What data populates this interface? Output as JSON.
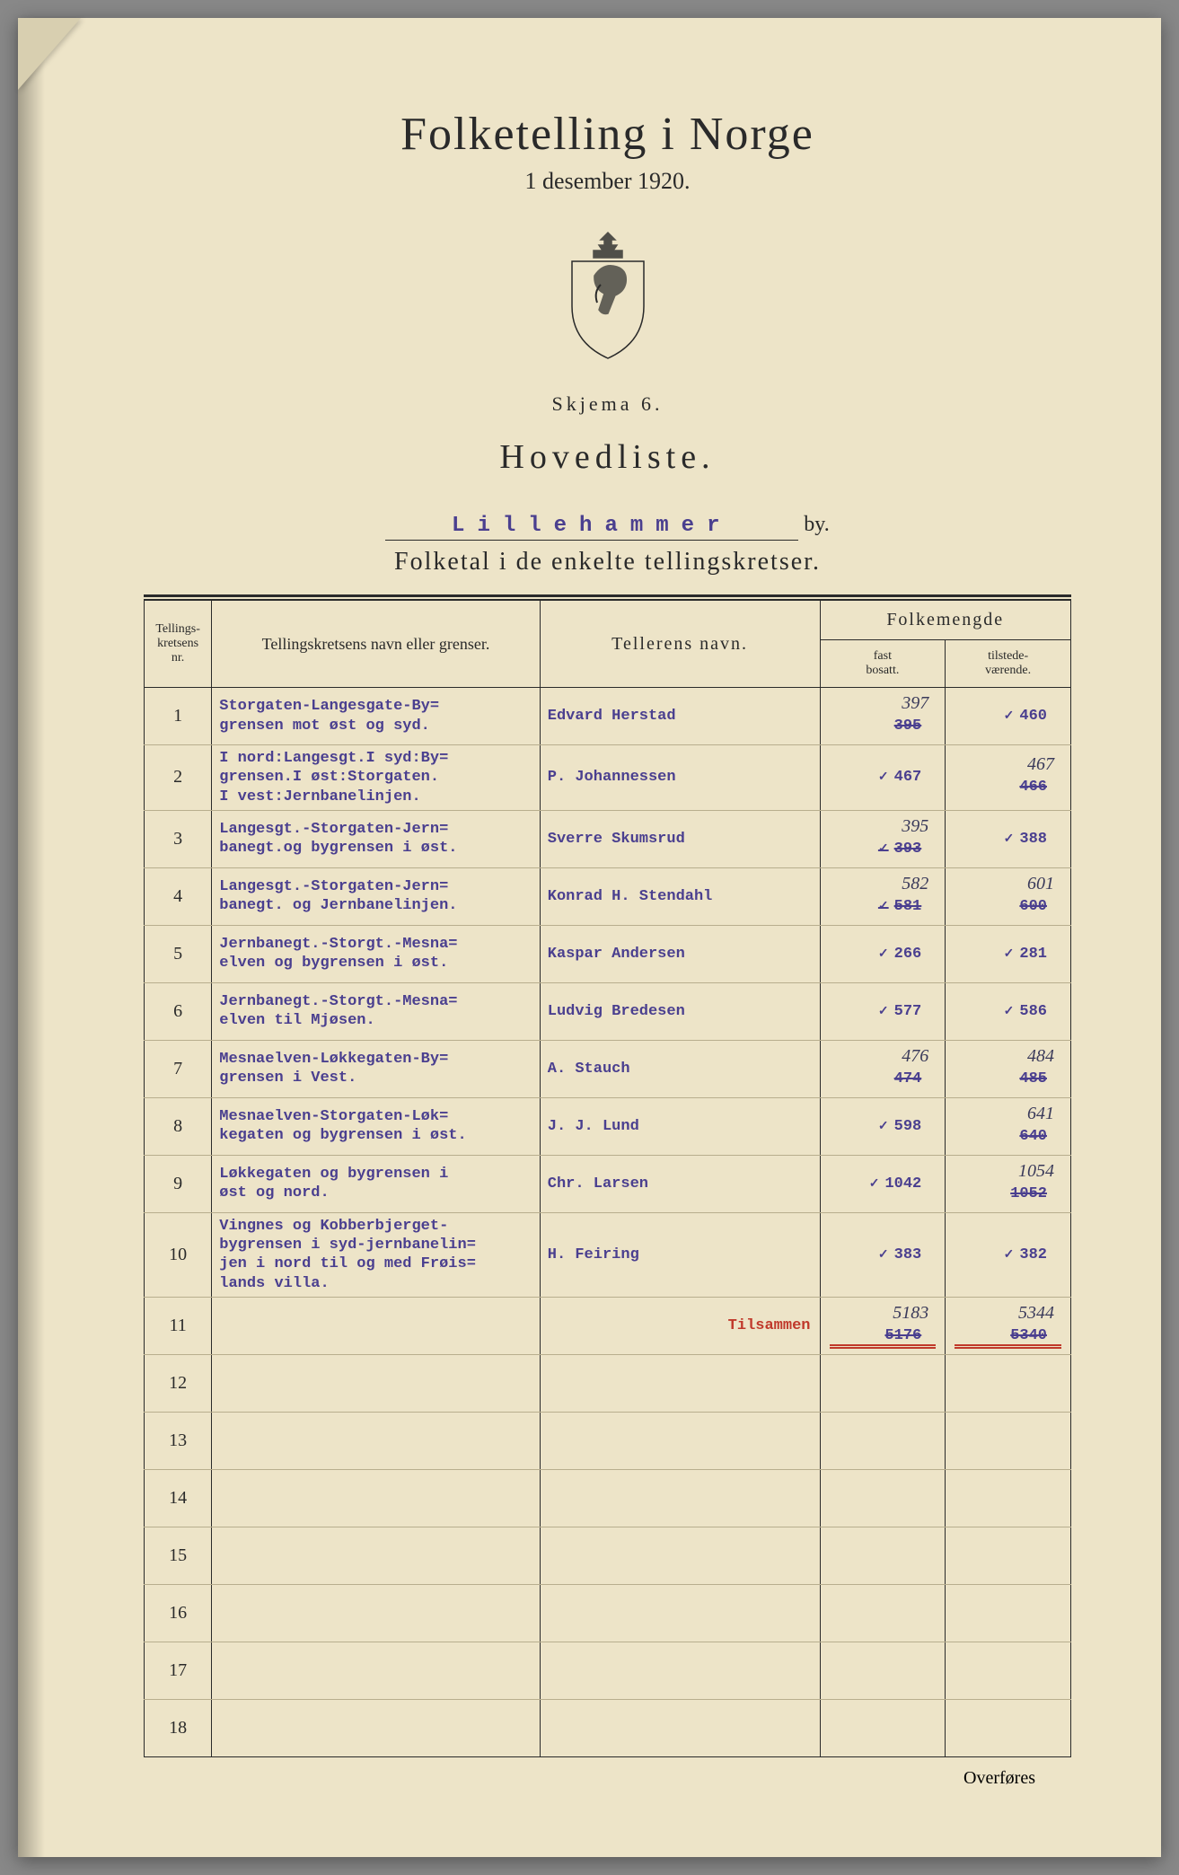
{
  "colors": {
    "paper": "#ede4c8",
    "ink": "#2a2a2a",
    "typed": "#4a3f8f",
    "red": "#c0392b",
    "rowline": "#b8ae8e",
    "handwritten": "#3a3a5a"
  },
  "header": {
    "title": "Folketelling i Norge",
    "date": "1 desember 1920.",
    "skjema": "Skjema 6.",
    "hovedliste": "Hovedliste.",
    "city": "Lillehammer",
    "city_suffix": "by.",
    "subtitle": "Folketal i de enkelte tellingskretser."
  },
  "table": {
    "headers": {
      "nr_line1": "Tellings-",
      "nr_line2": "kretsens",
      "nr_line3": "nr.",
      "name": "Tellingskretsens navn eller grenser.",
      "teller": "Tellerens navn.",
      "folkemengde": "Folkemengde",
      "fast_line1": "fast",
      "fast_line2": "bosatt.",
      "til_line1": "tilstede-",
      "til_line2": "værende."
    },
    "rows": [
      {
        "nr": "1",
        "name": "Storgaten-Langesgate-By=\ngrensen mot øst og syd.",
        "teller": "Edvard Herstad",
        "fast_hand": "397",
        "fast_typed": "395",
        "fast_struck": true,
        "fast_tick": false,
        "til_hand": "",
        "til_typed": "460",
        "til_struck": false,
        "til_tick": true
      },
      {
        "nr": "2",
        "name": "I nord:Langesgt.I syd:By=\ngrensen.I øst:Storgaten.\nI vest:Jernbanelinjen.",
        "teller": "P. Johannessen",
        "fast_hand": "",
        "fast_typed": "467",
        "fast_struck": false,
        "fast_tick": true,
        "til_hand": "467",
        "til_typed": "466",
        "til_struck": true,
        "til_tick": false
      },
      {
        "nr": "3",
        "name": "Langesgt.-Storgaten-Jern=\nbanegt.og bygrensen i øst.",
        "teller": "Sverre Skumsrud",
        "fast_hand": "395",
        "fast_typed": "393",
        "fast_struck": true,
        "fast_tick": true,
        "til_hand": "",
        "til_typed": "388",
        "til_struck": false,
        "til_tick": true
      },
      {
        "nr": "4",
        "name": "Langesgt.-Storgaten-Jern=\nbanegt. og Jernbanelinjen.",
        "teller": "Konrad H. Stendahl",
        "fast_hand": "582",
        "fast_typed": "581",
        "fast_struck": true,
        "fast_tick": true,
        "til_hand": "601",
        "til_typed": "600",
        "til_struck": true,
        "til_tick": false
      },
      {
        "nr": "5",
        "name": "Jernbanegt.-Storgt.-Mesna=\nelven og bygrensen i øst.",
        "teller": "Kaspar Andersen",
        "fast_hand": "",
        "fast_typed": "266",
        "fast_struck": false,
        "fast_tick": true,
        "til_hand": "",
        "til_typed": "281",
        "til_struck": false,
        "til_tick": true
      },
      {
        "nr": "6",
        "name": "Jernbanegt.-Storgt.-Mesna=\nelven til Mjøsen.",
        "teller": "Ludvig Bredesen",
        "fast_hand": "",
        "fast_typed": "577",
        "fast_struck": false,
        "fast_tick": true,
        "til_hand": "",
        "til_typed": "586",
        "til_struck": false,
        "til_tick": true
      },
      {
        "nr": "7",
        "name": "Mesnaelven-Løkkegaten-By=\ngrensen i Vest.",
        "teller": "A. Stauch",
        "fast_hand": "476",
        "fast_typed": "474",
        "fast_struck": true,
        "fast_tick": false,
        "til_hand": "484",
        "til_typed": "485",
        "til_struck": true,
        "til_tick": false
      },
      {
        "nr": "8",
        "name": "Mesnaelven-Storgaten-Løk=\nkegaten og bygrensen i øst.",
        "teller": "J. J. Lund",
        "fast_hand": "",
        "fast_typed": "598",
        "fast_struck": false,
        "fast_tick": true,
        "til_hand": "641",
        "til_typed": "640",
        "til_struck": true,
        "til_tick": false
      },
      {
        "nr": "9",
        "name": "Løkkegaten og bygrensen i\nøst og nord.",
        "teller": "Chr. Larsen",
        "fast_hand": "",
        "fast_typed": "1042",
        "fast_struck": false,
        "fast_tick": true,
        "til_hand": "1054",
        "til_typed": "1052",
        "til_struck": true,
        "til_tick": false
      },
      {
        "nr": "10",
        "name": "Vingnes og Kobberbjerget-\nbygrensen i syd-jernbanelin=\njen i nord til og med Frøis=\nlands villa.",
        "teller": "H. Feiring",
        "fast_hand": "",
        "fast_typed": "383",
        "fast_struck": false,
        "fast_tick": true,
        "til_hand": "",
        "til_typed": "382",
        "til_struck": false,
        "til_tick": true
      },
      {
        "nr": "11",
        "name": "",
        "teller": "",
        "fast_hand": "",
        "fast_typed": "",
        "fast_struck": false,
        "fast_tick": false,
        "til_hand": "",
        "til_typed": "",
        "til_struck": false,
        "til_tick": false
      },
      {
        "nr": "12",
        "name": "",
        "teller": "",
        "fast_hand": "",
        "fast_typed": "",
        "fast_struck": false,
        "fast_tick": false,
        "til_hand": "",
        "til_typed": "",
        "til_struck": false,
        "til_tick": false
      },
      {
        "nr": "13",
        "name": "",
        "teller": "",
        "fast_hand": "",
        "fast_typed": "",
        "fast_struck": false,
        "fast_tick": false,
        "til_hand": "",
        "til_typed": "",
        "til_struck": false,
        "til_tick": false
      },
      {
        "nr": "14",
        "name": "",
        "teller": "",
        "fast_hand": "",
        "fast_typed": "",
        "fast_struck": false,
        "fast_tick": false,
        "til_hand": "",
        "til_typed": "",
        "til_struck": false,
        "til_tick": false
      },
      {
        "nr": "15",
        "name": "",
        "teller": "",
        "fast_hand": "",
        "fast_typed": "",
        "fast_struck": false,
        "fast_tick": false,
        "til_hand": "",
        "til_typed": "",
        "til_struck": false,
        "til_tick": false
      },
      {
        "nr": "16",
        "name": "",
        "teller": "",
        "fast_hand": "",
        "fast_typed": "",
        "fast_struck": false,
        "fast_tick": false,
        "til_hand": "",
        "til_typed": "",
        "til_struck": false,
        "til_tick": false
      },
      {
        "nr": "17",
        "name": "",
        "teller": "",
        "fast_hand": "",
        "fast_typed": "",
        "fast_struck": false,
        "fast_tick": false,
        "til_hand": "",
        "til_typed": "",
        "til_struck": false,
        "til_tick": false
      },
      {
        "nr": "18",
        "name": "",
        "teller": "",
        "fast_hand": "",
        "fast_typed": "",
        "fast_struck": false,
        "fast_tick": false,
        "til_hand": "",
        "til_typed": "",
        "til_struck": false,
        "til_tick": false
      }
    ],
    "total": {
      "label": "Tilsammen",
      "fast_hand": "5183",
      "fast_typed": "5176",
      "til_hand": "5344",
      "til_typed": "5340"
    },
    "overfores": "Overføres"
  }
}
